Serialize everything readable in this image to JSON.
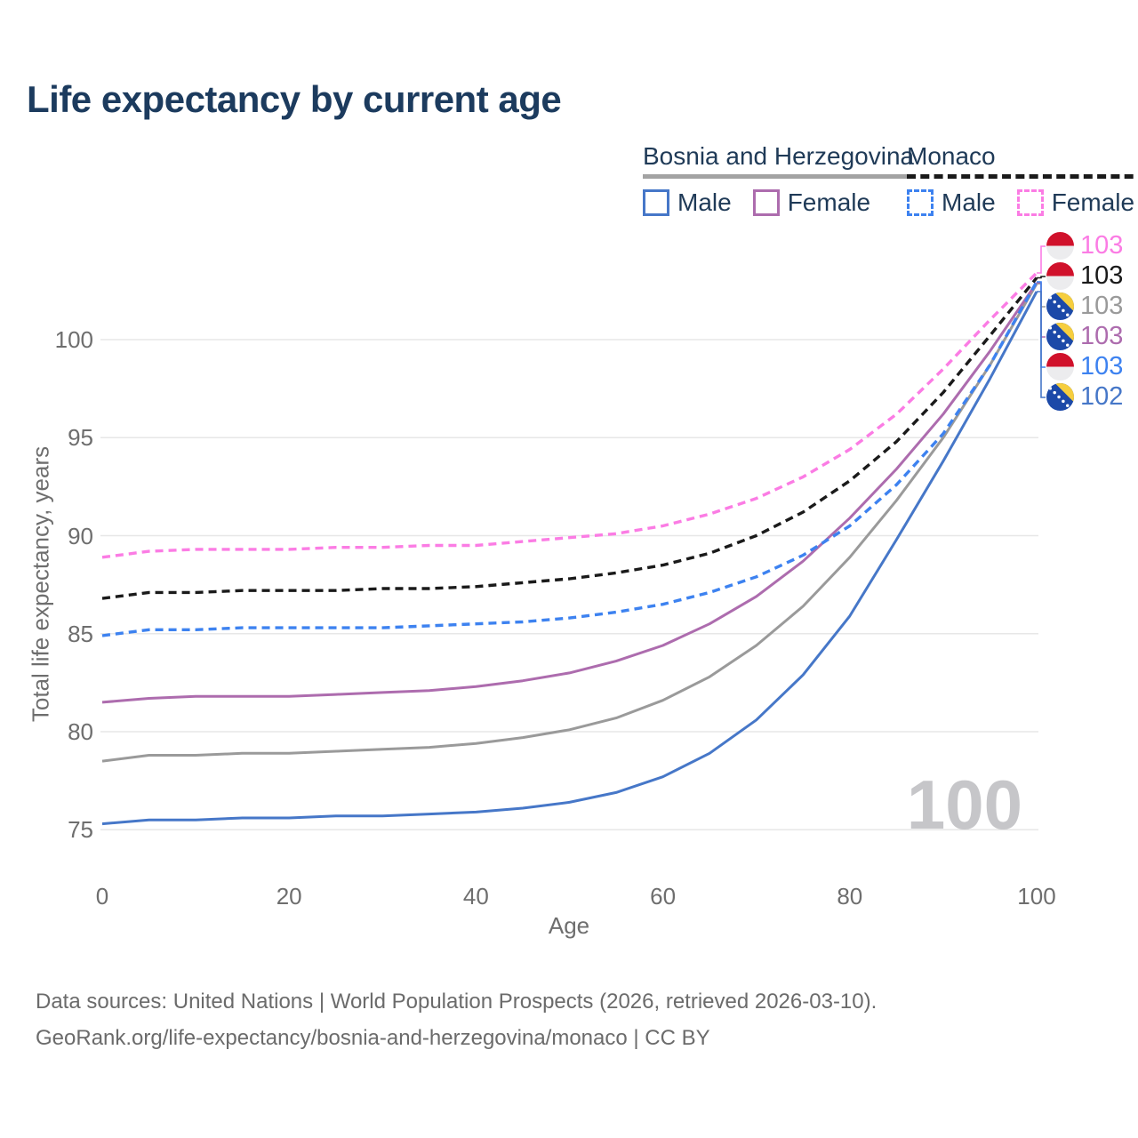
{
  "title": "Life expectancy by current age",
  "legend": {
    "groups": [
      {
        "label": "Bosnia and Herzegovina",
        "line_style": "solid",
        "line_color": "#a3a3a3",
        "items": [
          {
            "label": "Male",
            "color": "#4677c8",
            "style": "solid"
          },
          {
            "label": "Female",
            "color": "#ad6cae",
            "style": "solid"
          }
        ]
      },
      {
        "label": "Monaco",
        "line_style": "dashed",
        "line_color": "#1a1a1a",
        "items": [
          {
            "label": "Male",
            "color": "#3d82f0",
            "style": "dashed"
          },
          {
            "label": "Female",
            "color": "#fb7ce4",
            "style": "dashed"
          }
        ]
      }
    ]
  },
  "chart_data": {
    "type": "line",
    "title": "Life expectancy by current age",
    "xlabel": "Age",
    "ylabel": "Total life expectancy, years",
    "x_ticks": [
      0,
      20,
      40,
      60,
      80,
      100
    ],
    "y_ticks": [
      75,
      80,
      85,
      90,
      95,
      100
    ],
    "xlim": [
      0,
      100
    ],
    "ylim": [
      73.5,
      104.5
    ],
    "grid": "horizontal",
    "legend_position": "top-right",
    "x": [
      0,
      5,
      10,
      15,
      20,
      25,
      30,
      35,
      40,
      45,
      50,
      55,
      60,
      65,
      70,
      75,
      80,
      85,
      90,
      95,
      100
    ],
    "series": [
      {
        "id": "bih_male",
        "name": "Bosnia and Herzegovina — Male",
        "country": "Bosnia and Herzegovina",
        "sex": "Male",
        "color": "#4677c8",
        "dash": "solid",
        "values": [
          75.3,
          75.5,
          75.5,
          75.6,
          75.6,
          75.7,
          75.7,
          75.8,
          75.9,
          76.1,
          76.4,
          76.9,
          77.7,
          78.9,
          80.6,
          82.9,
          85.9,
          89.8,
          93.8,
          98.0,
          102.45
        ]
      },
      {
        "id": "bih_total",
        "name": "Bosnia and Herzegovina — Both sexes",
        "country": "Bosnia and Herzegovina",
        "sex": "Both",
        "color": "#9a9a9a",
        "dash": "solid",
        "values": [
          78.5,
          78.8,
          78.8,
          78.9,
          78.9,
          79.0,
          79.1,
          79.2,
          79.4,
          79.7,
          80.1,
          80.7,
          81.6,
          82.8,
          84.4,
          86.4,
          88.9,
          91.8,
          95.0,
          98.7,
          102.85
        ]
      },
      {
        "id": "bih_female",
        "name": "Bosnia and Herzegovina — Female",
        "country": "Bosnia and Herzegovina",
        "sex": "Female",
        "color": "#ad6cae",
        "dash": "solid",
        "values": [
          81.5,
          81.7,
          81.8,
          81.8,
          81.8,
          81.9,
          82.0,
          82.1,
          82.3,
          82.6,
          83.0,
          83.6,
          84.4,
          85.5,
          86.9,
          88.7,
          90.9,
          93.4,
          96.2,
          99.4,
          102.9
        ]
      },
      {
        "id": "monaco_male",
        "name": "Monaco — Male",
        "country": "Monaco",
        "sex": "Male",
        "color": "#3d82f0",
        "dash": "dashed",
        "values": [
          84.9,
          85.2,
          85.2,
          85.3,
          85.3,
          85.3,
          85.3,
          85.4,
          85.5,
          85.6,
          85.8,
          86.1,
          86.5,
          87.1,
          87.9,
          89.0,
          90.5,
          92.6,
          95.2,
          98.7,
          102.95
        ]
      },
      {
        "id": "monaco_total",
        "name": "Monaco — Both sexes",
        "country": "Monaco",
        "sex": "Both",
        "color": "#1a1a1a",
        "dash": "dashed",
        "values": [
          86.8,
          87.1,
          87.1,
          87.2,
          87.2,
          87.2,
          87.3,
          87.3,
          87.4,
          87.6,
          87.8,
          88.1,
          88.5,
          89.1,
          90.0,
          91.2,
          92.8,
          94.8,
          97.3,
          100.2,
          103.15
        ]
      },
      {
        "id": "monaco_female",
        "name": "Monaco — Female",
        "country": "Monaco",
        "sex": "Female",
        "color": "#fb7ce4",
        "dash": "dashed",
        "values": [
          88.9,
          89.2,
          89.3,
          89.3,
          89.3,
          89.4,
          89.4,
          89.5,
          89.5,
          89.7,
          89.9,
          90.1,
          90.5,
          91.1,
          91.9,
          93.0,
          94.4,
          96.2,
          98.5,
          101.0,
          103.4
        ]
      }
    ]
  },
  "value_labels": [
    {
      "flag": "monaco",
      "text": "103",
      "color": "#fb7ce4",
      "series": "monaco_female"
    },
    {
      "flag": "monaco",
      "text": "103",
      "color": "#1a1a1a",
      "series": "monaco_total"
    },
    {
      "flag": "bosnia",
      "text": "103",
      "color": "#9a9a9a",
      "series": "bih_total"
    },
    {
      "flag": "bosnia",
      "text": "103",
      "color": "#ad6cae",
      "series": "bih_female"
    },
    {
      "flag": "monaco",
      "text": "103",
      "color": "#3d82f0",
      "series": "monaco_male"
    },
    {
      "flag": "bosnia",
      "text": "102",
      "color": "#4677c8",
      "series": "bih_male"
    }
  ],
  "watermark": "100",
  "axis": {
    "xlabel": "Age",
    "ylabel": "Total life expectancy, years"
  },
  "footer": {
    "line1": "Data sources: United Nations | World Population Prospects (2026, retrieved 2026-03-10).",
    "line2": "GeoRank.org/life-expectancy/bosnia-and-herzegovina/monaco | CC BY"
  }
}
